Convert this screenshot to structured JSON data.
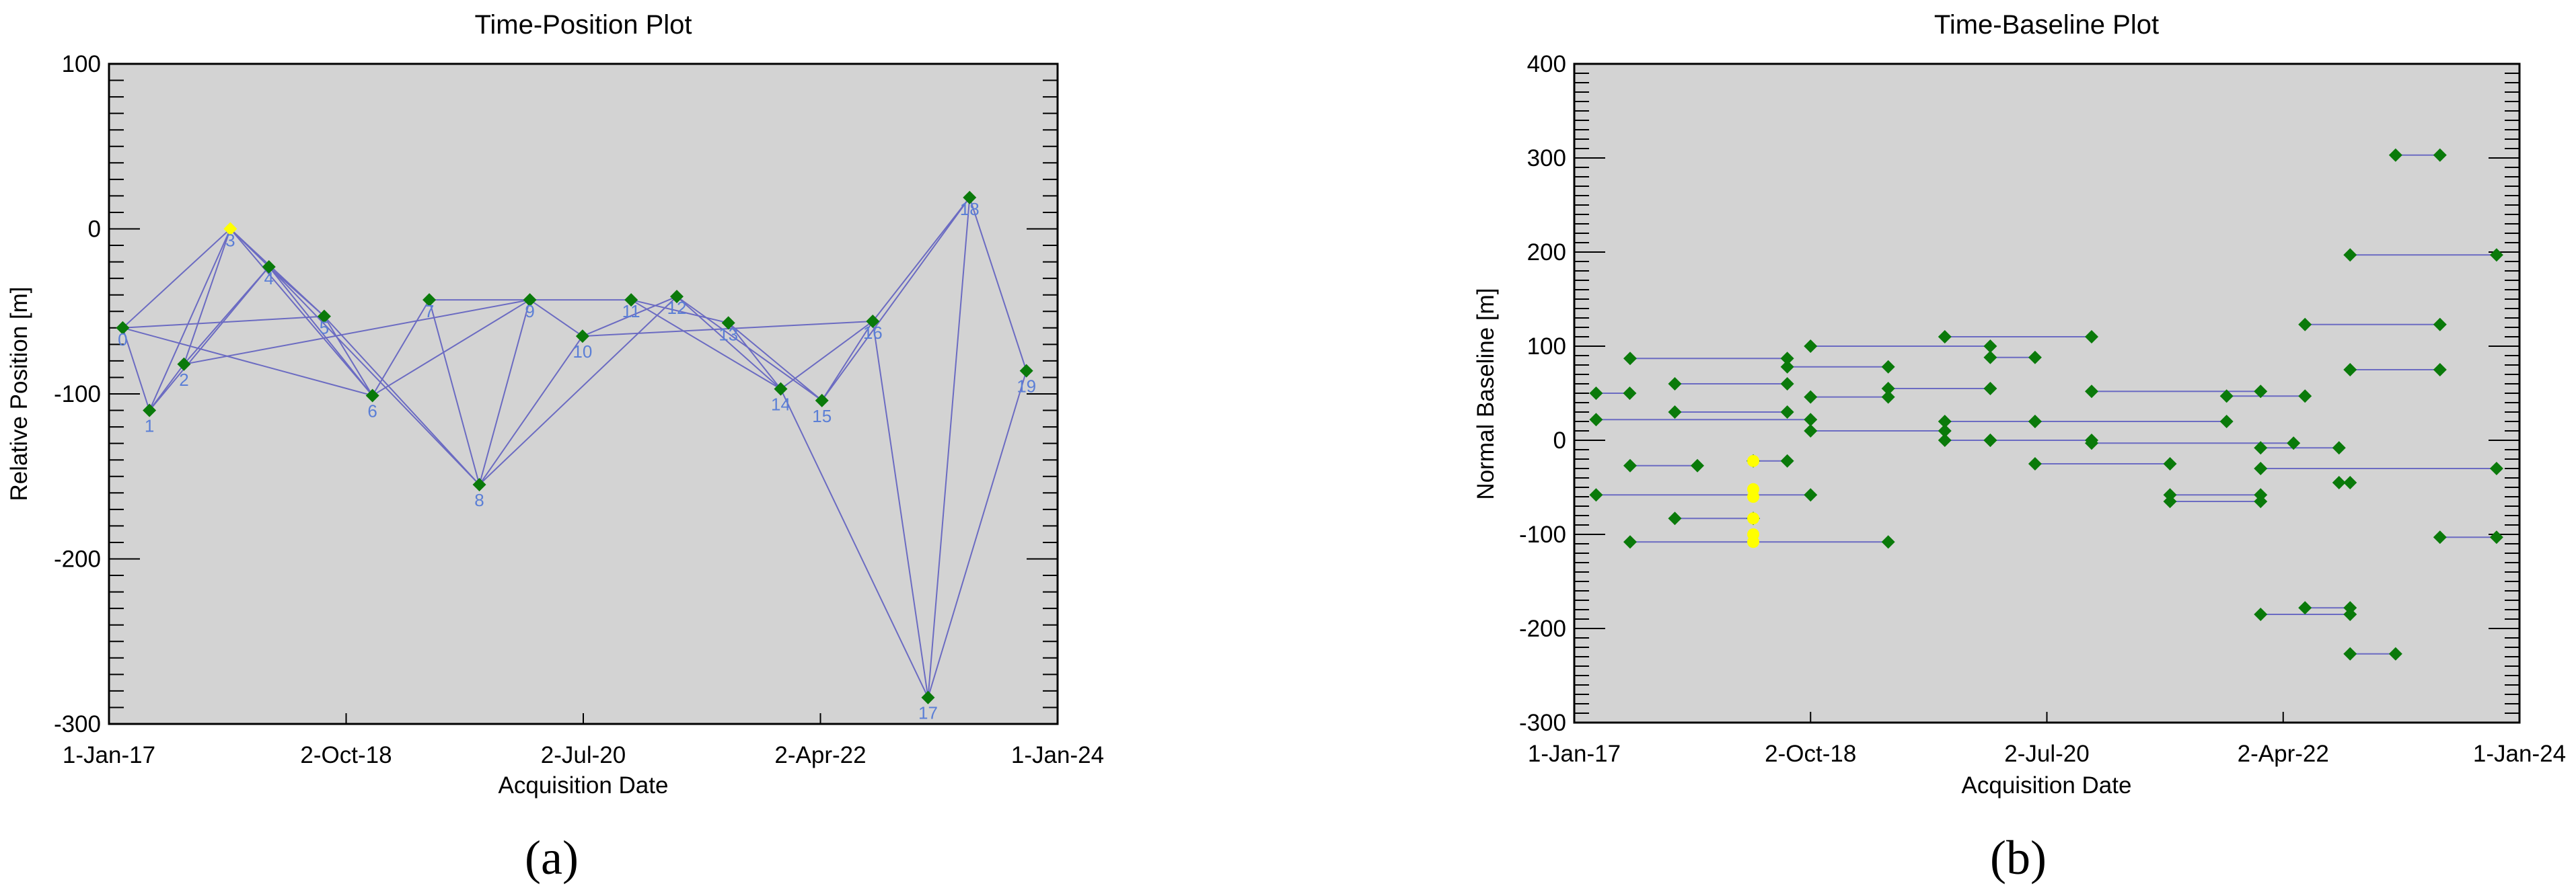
{
  "chart_data": [
    {
      "type": "scatter",
      "panel_label": "(a)",
      "title": "Time-Position Plot",
      "xlabel": "Acquisition Date",
      "ylabel": "Relative Position [m]",
      "x_tick_labels": [
        "1-Jan-17",
        "2-Oct-18",
        "2-Jul-20",
        "2-Apr-22",
        "1-Jan-24"
      ],
      "x_tick_dates": [
        "2017-01-01",
        "2018-10-02",
        "2020-07-02",
        "2022-04-02",
        "2024-01-01"
      ],
      "xlim": [
        "2017-01-01",
        "2024-01-01"
      ],
      "y_ticks": [
        100,
        0,
        -100,
        -200,
        -300
      ],
      "ylim": [
        -300,
        100
      ],
      "grid": false,
      "background": "#d3d3d3",
      "colors": {
        "point": "#0a7a0a",
        "reference": "#ffff00",
        "edge": "#6b6bc2",
        "point_label": "#5b7fd6"
      },
      "points": [
        {
          "label": "0",
          "x": "2017-02-07",
          "y": -60
        },
        {
          "label": "1",
          "x": "2017-04-20",
          "y": -110
        },
        {
          "label": "2",
          "x": "2017-07-22",
          "y": -82
        },
        {
          "label": "3",
          "x": "2017-11-24",
          "y": 0,
          "reference": true
        },
        {
          "label": "4",
          "x": "2018-03-08",
          "y": -23
        },
        {
          "label": "5",
          "x": "2018-08-04",
          "y": -53
        },
        {
          "label": "6",
          "x": "2018-12-12",
          "y": -101
        },
        {
          "label": "7",
          "x": "2019-05-14",
          "y": -43
        },
        {
          "label": "8",
          "x": "2019-09-26",
          "y": -155
        },
        {
          "label": "9",
          "x": "2020-02-09",
          "y": -43
        },
        {
          "label": "10",
          "x": "2020-06-30",
          "y": -65
        },
        {
          "label": "11",
          "x": "2020-11-08",
          "y": -43
        },
        {
          "label": "12",
          "x": "2021-03-11",
          "y": -41
        },
        {
          "label": "13",
          "x": "2021-07-28",
          "y": -57
        },
        {
          "label": "14",
          "x": "2021-12-16",
          "y": -97
        },
        {
          "label": "15",
          "x": "2022-04-06",
          "y": -104
        },
        {
          "label": "16",
          "x": "2022-08-21",
          "y": -56
        },
        {
          "label": "17",
          "x": "2023-01-17",
          "y": -284
        },
        {
          "label": "18",
          "x": "2023-05-09",
          "y": 19
        },
        {
          "label": "19",
          "x": "2023-10-09",
          "y": -86
        }
      ],
      "edges": [
        [
          0,
          1
        ],
        [
          0,
          3
        ],
        [
          0,
          5
        ],
        [
          0,
          6
        ],
        [
          1,
          2
        ],
        [
          1,
          3
        ],
        [
          1,
          4
        ],
        [
          2,
          3
        ],
        [
          2,
          4
        ],
        [
          2,
          9
        ],
        [
          3,
          4
        ],
        [
          3,
          5
        ],
        [
          3,
          6
        ],
        [
          4,
          5
        ],
        [
          4,
          6
        ],
        [
          4,
          8
        ],
        [
          5,
          6
        ],
        [
          5,
          8
        ],
        [
          6,
          7
        ],
        [
          6,
          9
        ],
        [
          7,
          8
        ],
        [
          7,
          11
        ],
        [
          8,
          9
        ],
        [
          8,
          10
        ],
        [
          8,
          12
        ],
        [
          9,
          10
        ],
        [
          10,
          12
        ],
        [
          10,
          16
        ],
        [
          11,
          13
        ],
        [
          11,
          14
        ],
        [
          12,
          14
        ],
        [
          12,
          15
        ],
        [
          13,
          14
        ],
        [
          13,
          15
        ],
        [
          14,
          16
        ],
        [
          15,
          16
        ],
        [
          15,
          18
        ],
        [
          16,
          17
        ],
        [
          16,
          18
        ],
        [
          17,
          18
        ],
        [
          17,
          19
        ],
        [
          18,
          19
        ],
        [
          14,
          17
        ]
      ]
    },
    {
      "type": "scatter",
      "panel_label": "(b)",
      "title": "Time-Baseline Plot",
      "xlabel": "Acquisition Date",
      "ylabel": "Normal Baseline [m]",
      "x_tick_labels": [
        "1-Jan-17",
        "2-Oct-18",
        "2-Jul-20",
        "2-Apr-22",
        "1-Jan-24"
      ],
      "x_tick_dates": [
        "2017-01-01",
        "2018-10-02",
        "2020-07-02",
        "2022-04-02",
        "2024-01-01"
      ],
      "xlim": [
        "2017-01-01",
        "2024-01-01"
      ],
      "y_ticks": [
        400,
        300,
        200,
        100,
        0,
        -100,
        -200,
        -300
      ],
      "ylim": [
        -300,
        400
      ],
      "grid": false,
      "background": "#d3d3d3",
      "colors": {
        "point": "#0a7a0a",
        "reference": "#ffff00",
        "edge": "#6b6bc2"
      },
      "pairs": [
        {
          "x1": "2017-03-01",
          "x2": "2017-05-31",
          "y": 50
        },
        {
          "x1": "2017-03-01",
          "x2": "2018-10-02",
          "y": 22
        },
        {
          "x1": "2017-06-01",
          "x2": "2018-07-31",
          "y": 87
        },
        {
          "x1": "2017-06-01",
          "x2": "2017-11-30",
          "y": -27
        },
        {
          "x1": "2017-03-01",
          "x2": "2018-10-02",
          "y": -58
        },
        {
          "x1": "2017-06-01",
          "x2": "2019-04-30",
          "y": -108
        },
        {
          "x1": "2017-09-30",
          "x2": "2018-07-31",
          "y": 60
        },
        {
          "x1": "2017-09-30",
          "x2": "2018-07-31",
          "y": 30
        },
        {
          "x1": "2017-09-30",
          "x2": "2018-04-30",
          "y": -83
        },
        {
          "x1": "2018-04-30",
          "x2": "2018-07-31",
          "y": -22
        },
        {
          "x1": "2018-07-31",
          "x2": "2019-04-30",
          "y": 78
        },
        {
          "x1": "2018-10-02",
          "x2": "2020-01-31",
          "y": 100
        },
        {
          "x1": "2018-10-02",
          "x2": "2019-04-30",
          "y": 46
        },
        {
          "x1": "2018-10-02",
          "x2": "2019-09-30",
          "y": 10
        },
        {
          "x1": "2019-04-30",
          "x2": "2020-01-31",
          "y": 55
        },
        {
          "x1": "2019-09-30",
          "x2": "2020-10-31",
          "y": 110
        },
        {
          "x1": "2019-09-30",
          "x2": "2020-05-31",
          "y": 20
        },
        {
          "x1": "2019-09-30",
          "x2": "2020-01-31",
          "y": 0
        },
        {
          "x1": "2020-01-31",
          "x2": "2020-05-31",
          "y": 88
        },
        {
          "x1": "2020-01-31",
          "x2": "2020-10-31",
          "y": 0
        },
        {
          "x1": "2020-05-31",
          "x2": "2021-10-31",
          "y": 20
        },
        {
          "x1": "2020-10-31",
          "x2": "2022-01-31",
          "y": 52
        },
        {
          "x1": "2020-10-31",
          "x2": "2022-04-30",
          "y": -3
        },
        {
          "x1": "2020-05-31",
          "x2": "2021-05-31",
          "y": -25
        },
        {
          "x1": "2021-05-31",
          "x2": "2022-01-31",
          "y": -58
        },
        {
          "x1": "2021-05-31",
          "x2": "2022-01-31",
          "y": -65
        },
        {
          "x1": "2021-10-31",
          "x2": "2022-05-31",
          "y": 47
        },
        {
          "x1": "2022-01-31",
          "x2": "2022-08-31",
          "y": -8
        },
        {
          "x1": "2022-01-31",
          "x2": "2023-10-31",
          "y": -30
        },
        {
          "x1": "2022-01-31",
          "x2": "2022-09-30",
          "y": -185
        },
        {
          "x1": "2022-05-31",
          "x2": "2023-05-31",
          "y": 123
        },
        {
          "x1": "2022-05-31",
          "x2": "2022-09-30",
          "y": -178
        },
        {
          "x1": "2022-09-30",
          "x2": "2023-10-31",
          "y": 197
        },
        {
          "x1": "2022-09-30",
          "x2": "2023-05-31",
          "y": 75
        },
        {
          "x1": "2022-09-30",
          "x2": "2023-01-31",
          "y": -227
        },
        {
          "x1": "2023-01-31",
          "x2": "2023-05-31",
          "y": 303
        },
        {
          "x1": "2023-05-31",
          "x2": "2023-10-31",
          "y": -103
        },
        {
          "x1": "2022-08-31",
          "x2": "2022-09-30",
          "y": -45
        }
      ],
      "reference_points": [
        {
          "x": "2018-04-30",
          "y": -22
        },
        {
          "x": "2018-04-30",
          "y": -52
        },
        {
          "x": "2018-04-30",
          "y": -60
        },
        {
          "x": "2018-04-30",
          "y": -83
        },
        {
          "x": "2018-04-30",
          "y": -100
        },
        {
          "x": "2018-04-30",
          "y": -108
        }
      ]
    }
  ]
}
